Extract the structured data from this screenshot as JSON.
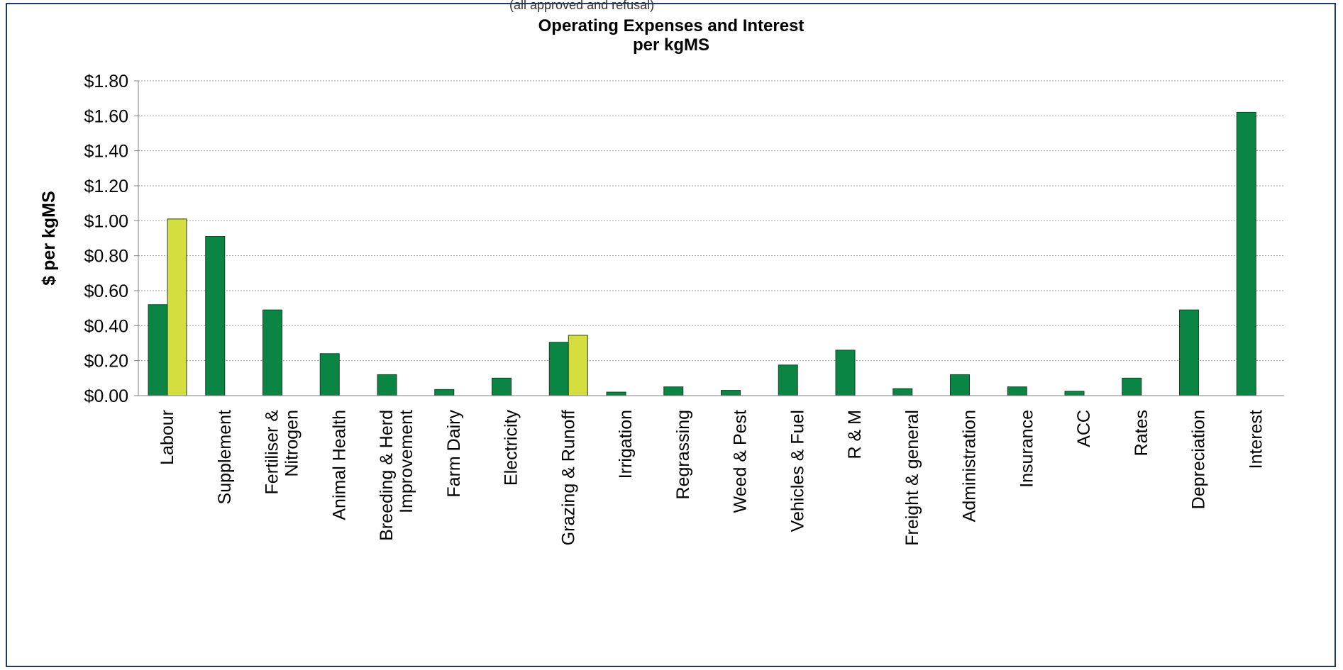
{
  "header_fragment": "(all approved and refusal)",
  "chart_data": {
    "type": "bar",
    "title_lines": [
      "Operating Expenses and Interest",
      "per kgMS"
    ],
    "ylabel": "$ per kgMS",
    "ylim": [
      0,
      1.8
    ],
    "ytick_values": [
      0,
      0.2,
      0.4,
      0.6,
      0.8,
      1.0,
      1.2,
      1.4,
      1.6,
      1.8
    ],
    "ytick_labels": [
      "$0.00",
      "$0.20",
      "$0.40",
      "$0.60",
      "$0.80",
      "$1.00",
      "$1.20",
      "$1.40",
      "$1.60",
      "$1.80"
    ],
    "grid": true,
    "categories": [
      [
        "Labour"
      ],
      [
        "Supplement"
      ],
      [
        "Fertiliser &",
        "Nitrogen"
      ],
      [
        "Animal Health"
      ],
      [
        "Breeding & Herd",
        "Improvement"
      ],
      [
        "Farm Dairy"
      ],
      [
        "Electricity"
      ],
      [
        "Grazing & Runoff"
      ],
      [
        "Irrigation"
      ],
      [
        "Regrassing"
      ],
      [
        "Weed & Pest"
      ],
      [
        "Vehicles & Fuel"
      ],
      [
        "R & M"
      ],
      [
        "Freight & general"
      ],
      [
        "Administration"
      ],
      [
        "Insurance"
      ],
      [
        "ACC"
      ],
      [
        "Rates"
      ],
      [
        "Depreciation"
      ],
      [
        "Interest"
      ]
    ],
    "series": [
      {
        "color": "#0a8543",
        "values": [
          0.52,
          0.91,
          0.49,
          0.24,
          0.12,
          0.035,
          0.1,
          0.305,
          0.02,
          0.05,
          0.03,
          0.175,
          0.26,
          0.04,
          0.12,
          0.05,
          0.025,
          0.1,
          0.49,
          1.62
        ]
      },
      {
        "color": "#d4df3f",
        "values": [
          1.01,
          null,
          null,
          null,
          null,
          null,
          null,
          0.345,
          null,
          null,
          null,
          null,
          null,
          null,
          null,
          null,
          null,
          null,
          null,
          null
        ]
      }
    ]
  }
}
